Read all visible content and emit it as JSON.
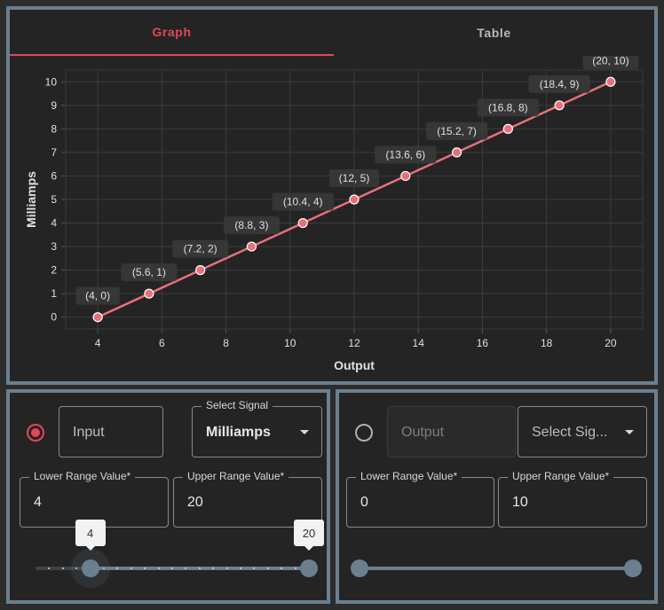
{
  "tabs": {
    "graph": "Graph",
    "table": "Table"
  },
  "chart_data": {
    "type": "line",
    "xlabel": "Output",
    "ylabel": "Milliamps",
    "xlim": [
      3,
      21
    ],
    "ylim": [
      -0.5,
      10.5
    ],
    "x_ticks": [
      4,
      6,
      8,
      10,
      12,
      14,
      16,
      18,
      20
    ],
    "y_ticks": [
      0,
      1,
      2,
      3,
      4,
      5,
      6,
      7,
      8,
      9,
      10
    ],
    "grid": true,
    "series": [
      {
        "color": "#e8707a",
        "points": [
          {
            "x": 4,
            "y": 0,
            "label": "(4, 0)"
          },
          {
            "x": 5.6,
            "y": 1,
            "label": "(5.6, 1)"
          },
          {
            "x": 7.2,
            "y": 2,
            "label": "(7.2, 2)"
          },
          {
            "x": 8.8,
            "y": 3,
            "label": "(8.8, 3)"
          },
          {
            "x": 10.4,
            "y": 4,
            "label": "(10.4, 4)"
          },
          {
            "x": 12,
            "y": 5,
            "label": "(12, 5)"
          },
          {
            "x": 13.6,
            "y": 6,
            "label": "(13.6, 6)"
          },
          {
            "x": 15.2,
            "y": 7,
            "label": "(15.2, 7)"
          },
          {
            "x": 16.8,
            "y": 8,
            "label": "(16.8, 8)"
          },
          {
            "x": 18.4,
            "y": 9,
            "label": "(18.4, 9)"
          },
          {
            "x": 20,
            "y": 10,
            "label": "(20, 10)"
          }
        ]
      }
    ]
  },
  "input_panel": {
    "selected": true,
    "name_placeholder": "Input",
    "signal_legend": "Select Signal",
    "signal_value": "Milliamps",
    "lower_legend": "Lower Range Value*",
    "lower_value": "4",
    "upper_legend": "Upper Range Value*",
    "upper_value": "20",
    "slider": {
      "min": 0,
      "max": 20,
      "step": 1,
      "lower": 4,
      "upper": 20,
      "lower_label": "4",
      "upper_label": "20"
    }
  },
  "output_panel": {
    "selected": false,
    "name_placeholder": "Output",
    "signal_placeholder": "Select Sig...",
    "lower_legend": "Lower Range Value*",
    "lower_value": "0",
    "upper_legend": "Upper Range Value*",
    "upper_value": "10",
    "slider": {
      "min": 0,
      "max": 10,
      "lower": 0,
      "upper": 10
    }
  },
  "colors": {
    "accent": "#e2465a",
    "panel_border": "#6b7f8e",
    "line": "#e8707a"
  }
}
